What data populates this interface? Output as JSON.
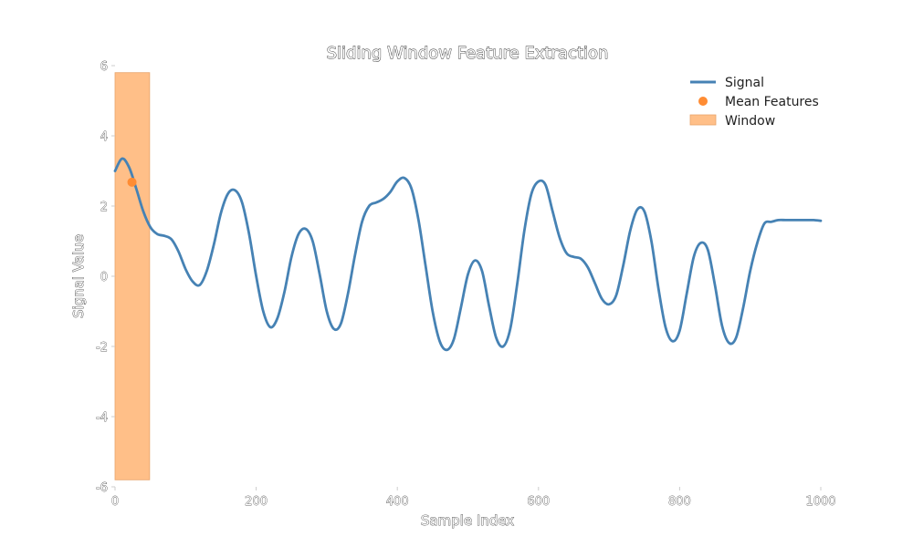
{
  "chart_data": {
    "type": "line",
    "title": "Sliding Window Feature Extraction",
    "xlabel": "Sample Index",
    "ylabel": "Signal Value",
    "xlim": [
      0,
      1000
    ],
    "ylim": [
      -6,
      6
    ],
    "xticks": [
      0,
      200,
      400,
      600,
      800,
      1000
    ],
    "yticks": [
      -6,
      -4,
      -2,
      0,
      2,
      4,
      6
    ],
    "grid": false,
    "legend_position": "top-right",
    "colors": {
      "signal": "#4682b4",
      "mean": "#ff8c33",
      "window": "#ffbf88",
      "window_edge": "#e8a36a"
    },
    "series": [
      {
        "name": "Signal",
        "kind": "line",
        "x": [
          0,
          10,
          20,
          30,
          40,
          50,
          60,
          70,
          80,
          90,
          100,
          110,
          120,
          130,
          140,
          150,
          160,
          170,
          180,
          190,
          200,
          210,
          220,
          230,
          240,
          250,
          260,
          270,
          280,
          290,
          300,
          310,
          320,
          330,
          340,
          350,
          360,
          370,
          380,
          390,
          400,
          410,
          420,
          430,
          440,
          450,
          460,
          470,
          480,
          490,
          500,
          510,
          520,
          530,
          540,
          550,
          560,
          570,
          580,
          590,
          600,
          610,
          620,
          630,
          640,
          650,
          660,
          670,
          680,
          690,
          700,
          710,
          720,
          730,
          740,
          750,
          760,
          770,
          780,
          790,
          800,
          810,
          820,
          830,
          840,
          850,
          860,
          870,
          880,
          890,
          900,
          910,
          920,
          930,
          940,
          950,
          960,
          970,
          980,
          990,
          1000
        ],
        "y": [
          3.0,
          3.35,
          3.1,
          2.5,
          1.85,
          1.4,
          1.2,
          1.15,
          1.05,
          0.7,
          0.2,
          -0.15,
          -0.25,
          0.15,
          0.9,
          1.8,
          2.35,
          2.45,
          2.1,
          1.2,
          0.0,
          -1.0,
          -1.45,
          -1.2,
          -0.45,
          0.55,
          1.2,
          1.35,
          1.0,
          0.05,
          -1.0,
          -1.5,
          -1.35,
          -0.5,
          0.6,
          1.55,
          2.0,
          2.1,
          2.2,
          2.4,
          2.7,
          2.8,
          2.5,
          1.6,
          0.3,
          -1.0,
          -1.85,
          -2.1,
          -1.8,
          -0.9,
          0.05,
          0.45,
          0.15,
          -0.85,
          -1.75,
          -2.0,
          -1.5,
          -0.2,
          1.3,
          2.35,
          2.7,
          2.6,
          1.85,
          1.1,
          0.65,
          0.55,
          0.5,
          0.25,
          -0.2,
          -0.65,
          -0.8,
          -0.55,
          0.3,
          1.3,
          1.9,
          1.85,
          1.0,
          -0.35,
          -1.45,
          -1.85,
          -1.55,
          -0.5,
          0.55,
          0.95,
          0.75,
          -0.25,
          -1.4,
          -1.9,
          -1.75,
          -0.9,
          0.15,
          0.95,
          1.5,
          1.55,
          1.6,
          1.6,
          1.6,
          1.6,
          1.6,
          1.6,
          1.58
        ]
      },
      {
        "name": "Mean Features",
        "kind": "scatter",
        "x": [
          24
        ],
        "y": [
          2.68
        ]
      },
      {
        "name": "Window",
        "kind": "span",
        "x_start": 0,
        "x_end": 49,
        "y_start": -5.8,
        "y_end": 5.8
      }
    ]
  }
}
